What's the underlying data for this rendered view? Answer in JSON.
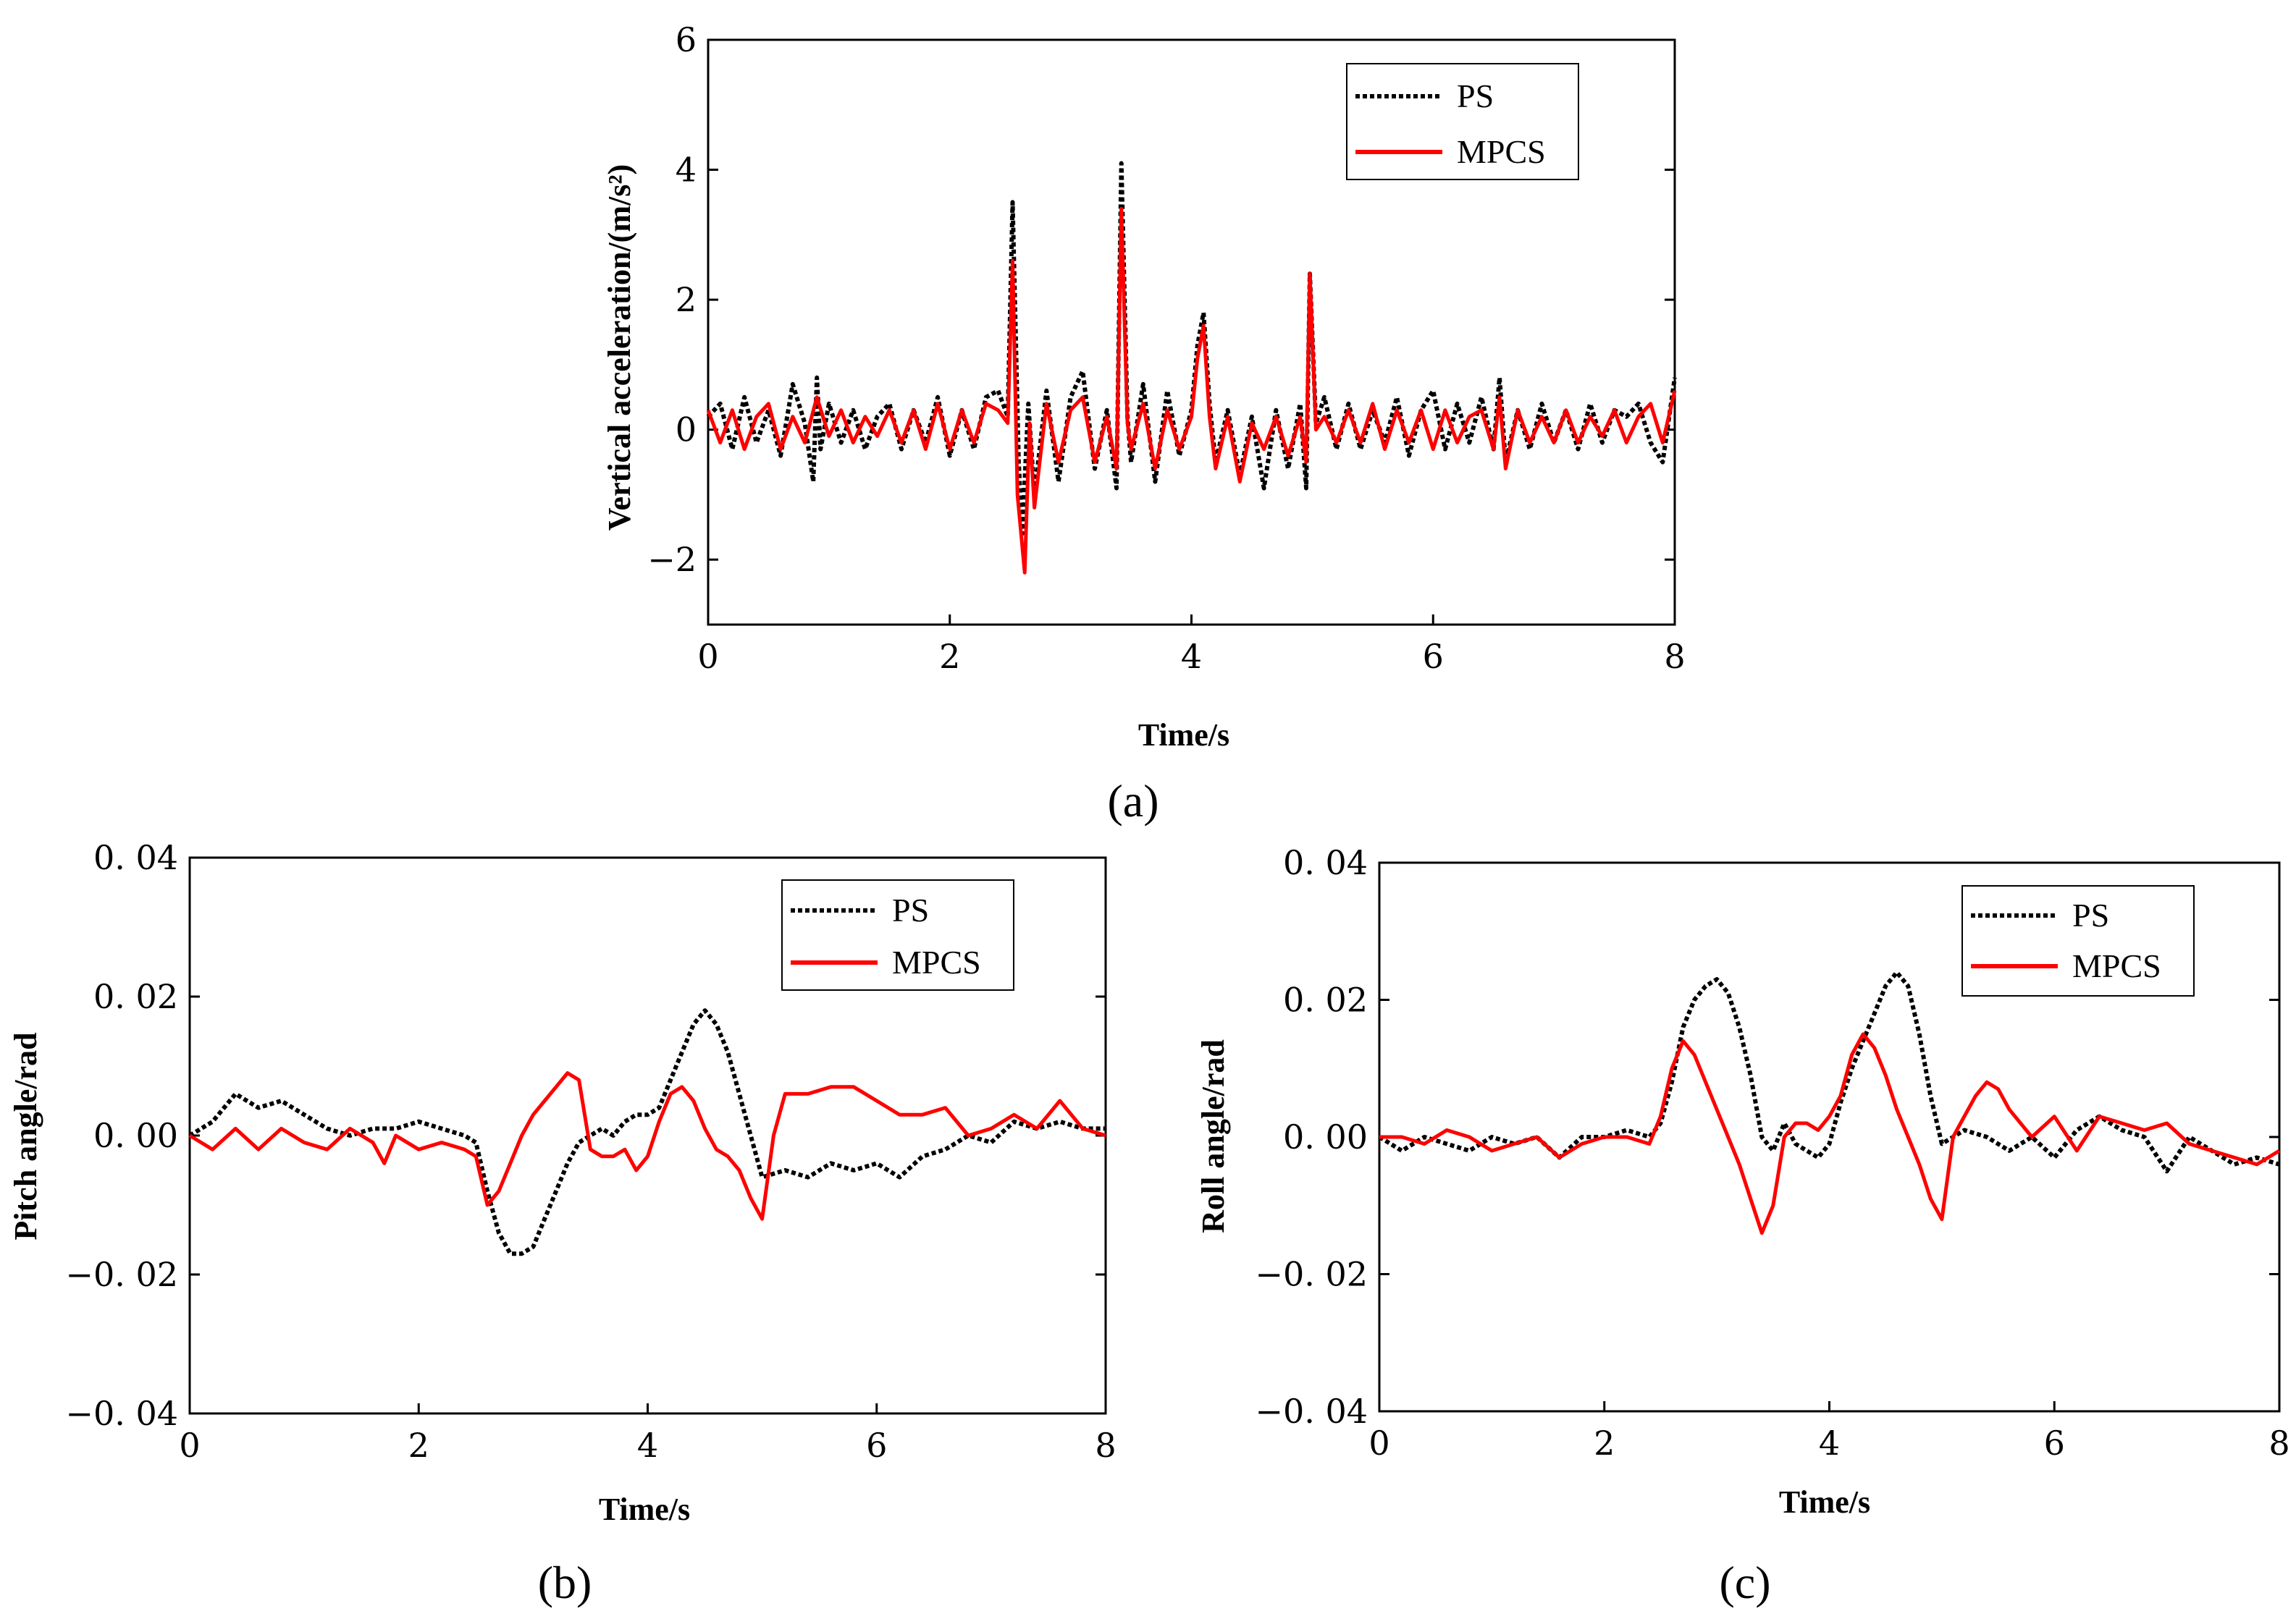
{
  "colors": {
    "ps": "#000000",
    "mpcs": "#ff0000",
    "axis": "#000000",
    "background": "#ffffff"
  },
  "chart_data": [
    {
      "id": "a",
      "type": "line",
      "panel_label": "(a)",
      "title": "",
      "xlabel": "Time/s",
      "ylabel": "Vertical acceleration/(m/s²)",
      "xlim": [
        0,
        8
      ],
      "ylim": [
        -3,
        6
      ],
      "xticks": [
        0,
        2,
        4,
        6,
        8
      ],
      "xtick_labels": [
        "0",
        "2",
        "4",
        "6",
        "8"
      ],
      "yticks": [
        -2,
        0,
        2,
        4,
        6
      ],
      "ytick_labels": [
        "−2",
        "0",
        "2",
        "4",
        "6"
      ],
      "legend_position": "top-right",
      "series": [
        {
          "name": "PS",
          "style": "dotted",
          "x": [
            0,
            0.1,
            0.2,
            0.3,
            0.4,
            0.5,
            0.6,
            0.7,
            0.8,
            0.87,
            0.9,
            0.93,
            1.0,
            1.1,
            1.2,
            1.3,
            1.4,
            1.5,
            1.6,
            1.7,
            1.8,
            1.9,
            2.0,
            2.1,
            2.2,
            2.3,
            2.4,
            2.48,
            2.52,
            2.57,
            2.6,
            2.65,
            2.7,
            2.8,
            2.9,
            3.0,
            3.1,
            3.2,
            3.3,
            3.38,
            3.42,
            3.47,
            3.5,
            3.6,
            3.7,
            3.8,
            3.9,
            4.0,
            4.05,
            4.1,
            4.15,
            4.2,
            4.3,
            4.4,
            4.5,
            4.6,
            4.7,
            4.8,
            4.9,
            4.95,
            4.98,
            5.03,
            5.1,
            5.2,
            5.3,
            5.4,
            5.5,
            5.6,
            5.7,
            5.8,
            5.9,
            6.0,
            6.1,
            6.2,
            6.3,
            6.4,
            6.5,
            6.55,
            6.6,
            6.7,
            6.8,
            6.9,
            7.0,
            7.1,
            7.2,
            7.3,
            7.4,
            7.5,
            7.6,
            7.7,
            7.8,
            7.9,
            8.0
          ],
          "y": [
            0.2,
            0.4,
            -0.3,
            0.5,
            -0.2,
            0.3,
            -0.4,
            0.7,
            0.1,
            -0.8,
            0.8,
            -0.3,
            0.4,
            -0.2,
            0.3,
            -0.3,
            0.2,
            0.4,
            -0.3,
            0.3,
            -0.2,
            0.5,
            -0.4,
            0.3,
            -0.3,
            0.5,
            0.6,
            0.2,
            3.5,
            -0.5,
            -1.6,
            0.4,
            -1.0,
            0.6,
            -0.8,
            0.5,
            0.9,
            -0.6,
            0.3,
            -0.9,
            4.1,
            0.2,
            -0.5,
            0.7,
            -0.8,
            0.6,
            -0.4,
            0.3,
            1.3,
            1.8,
            0.4,
            -0.5,
            0.3,
            -0.7,
            0.2,
            -0.9,
            0.3,
            -0.6,
            0.4,
            -0.9,
            2.4,
            0.1,
            0.5,
            -0.3,
            0.4,
            -0.3,
            0.3,
            -0.2,
            0.5,
            -0.4,
            0.3,
            0.6,
            -0.3,
            0.4,
            -0.2,
            0.5,
            -0.3,
            0.8,
            -0.5,
            0.3,
            -0.3,
            0.4,
            -0.2,
            0.3,
            -0.3,
            0.4,
            -0.2,
            0.3,
            0.2,
            0.4,
            -0.2,
            -0.5,
            0.8
          ]
        },
        {
          "name": "MPCS",
          "style": "solid",
          "x": [
            0,
            0.1,
            0.2,
            0.3,
            0.4,
            0.5,
            0.6,
            0.7,
            0.8,
            0.9,
            1.0,
            1.1,
            1.2,
            1.3,
            1.4,
            1.5,
            1.6,
            1.7,
            1.8,
            1.9,
            2.0,
            2.1,
            2.2,
            2.3,
            2.4,
            2.48,
            2.52,
            2.56,
            2.62,
            2.66,
            2.7,
            2.8,
            2.9,
            3.0,
            3.1,
            3.2,
            3.3,
            3.38,
            3.42,
            3.47,
            3.5,
            3.6,
            3.7,
            3.8,
            3.9,
            4.0,
            4.05,
            4.1,
            4.15,
            4.2,
            4.3,
            4.4,
            4.5,
            4.6,
            4.7,
            4.8,
            4.9,
            4.95,
            4.98,
            5.03,
            5.1,
            5.2,
            5.3,
            5.4,
            5.5,
            5.6,
            5.7,
            5.8,
            5.9,
            6.0,
            6.1,
            6.2,
            6.3,
            6.4,
            6.5,
            6.55,
            6.6,
            6.7,
            6.8,
            6.9,
            7.0,
            7.1,
            7.2,
            7.3,
            7.4,
            7.5,
            7.6,
            7.7,
            7.8,
            7.9,
            8.0
          ],
          "y": [
            0.3,
            -0.2,
            0.3,
            -0.3,
            0.2,
            0.4,
            -0.3,
            0.2,
            -0.2,
            0.5,
            -0.1,
            0.3,
            -0.2,
            0.2,
            -0.1,
            0.3,
            -0.2,
            0.3,
            -0.3,
            0.4,
            -0.3,
            0.3,
            -0.2,
            0.4,
            0.3,
            0.1,
            2.6,
            -1.0,
            -2.2,
            0.1,
            -1.2,
            0.4,
            -0.5,
            0.3,
            0.5,
            -0.5,
            0.2,
            -0.6,
            3.4,
            0.1,
            -0.3,
            0.4,
            -0.6,
            0.3,
            -0.3,
            0.2,
            1.1,
            1.6,
            0.2,
            -0.6,
            0.2,
            -0.8,
            0.1,
            -0.3,
            0.2,
            -0.4,
            0.2,
            -0.5,
            2.4,
            0.0,
            0.2,
            -0.2,
            0.3,
            -0.2,
            0.4,
            -0.3,
            0.3,
            -0.2,
            0.3,
            -0.3,
            0.3,
            -0.2,
            0.2,
            0.3,
            -0.3,
            0.5,
            -0.6,
            0.3,
            -0.2,
            0.2,
            -0.2,
            0.3,
            -0.2,
            0.2,
            -0.1,
            0.3,
            -0.2,
            0.2,
            0.4,
            -0.2,
            0.6
          ]
        }
      ]
    },
    {
      "id": "b",
      "type": "line",
      "panel_label": "(b)",
      "title": "",
      "xlabel": "Time/s",
      "ylabel": "Pitch angle/rad",
      "xlim": [
        0,
        8
      ],
      "ylim": [
        -0.04,
        0.04
      ],
      "xticks": [
        0,
        2,
        4,
        6,
        8
      ],
      "xtick_labels": [
        "0",
        "2",
        "4",
        "6",
        "8"
      ],
      "yticks": [
        -0.04,
        -0.02,
        0.0,
        0.02,
        0.04
      ],
      "ytick_labels": [
        "−0. 04",
        "−0. 02",
        "0. 00",
        "0. 02",
        "0. 04"
      ],
      "legend_position": "top-right",
      "series": [
        {
          "name": "PS",
          "style": "dotted",
          "x": [
            0,
            0.2,
            0.4,
            0.6,
            0.8,
            1.0,
            1.2,
            1.4,
            1.6,
            1.8,
            2.0,
            2.2,
            2.4,
            2.5,
            2.6,
            2.7,
            2.8,
            2.9,
            3.0,
            3.1,
            3.2,
            3.3,
            3.4,
            3.5,
            3.6,
            3.7,
            3.8,
            3.9,
            4.0,
            4.1,
            4.2,
            4.3,
            4.4,
            4.5,
            4.6,
            4.7,
            4.8,
            4.9,
            5.0,
            5.2,
            5.4,
            5.6,
            5.8,
            6.0,
            6.2,
            6.4,
            6.6,
            6.8,
            7.0,
            7.2,
            7.4,
            7.6,
            7.8,
            8.0
          ],
          "y": [
            0.0,
            0.002,
            0.006,
            0.004,
            0.005,
            0.003,
            0.001,
            0.0,
            0.001,
            0.001,
            0.002,
            0.001,
            0.0,
            -0.001,
            -0.008,
            -0.014,
            -0.017,
            -0.017,
            -0.016,
            -0.012,
            -0.008,
            -0.004,
            -0.001,
            0.0,
            0.001,
            0.0,
            0.002,
            0.003,
            0.003,
            0.004,
            0.008,
            0.012,
            0.016,
            0.018,
            0.016,
            0.012,
            0.006,
            0.0,
            -0.006,
            -0.005,
            -0.006,
            -0.004,
            -0.005,
            -0.004,
            -0.006,
            -0.003,
            -0.002,
            0.0,
            -0.001,
            0.002,
            0.001,
            0.002,
            0.001,
            0.001
          ]
        },
        {
          "name": "MPCS",
          "style": "solid",
          "x": [
            0,
            0.2,
            0.4,
            0.6,
            0.8,
            1.0,
            1.2,
            1.4,
            1.6,
            1.7,
            1.8,
            2.0,
            2.2,
            2.4,
            2.5,
            2.6,
            2.7,
            2.8,
            2.9,
            3.0,
            3.1,
            3.2,
            3.3,
            3.4,
            3.5,
            3.6,
            3.7,
            3.8,
            3.9,
            4.0,
            4.1,
            4.2,
            4.3,
            4.4,
            4.5,
            4.6,
            4.7,
            4.8,
            4.9,
            5.0,
            5.1,
            5.2,
            5.4,
            5.6,
            5.8,
            6.0,
            6.2,
            6.4,
            6.6,
            6.8,
            7.0,
            7.2,
            7.4,
            7.6,
            7.8,
            8.0
          ],
          "y": [
            0.0,
            -0.002,
            0.001,
            -0.002,
            0.001,
            -0.001,
            -0.002,
            0.001,
            -0.001,
            -0.004,
            0.0,
            -0.002,
            -0.001,
            -0.002,
            -0.003,
            -0.01,
            -0.008,
            -0.004,
            0.0,
            0.003,
            0.005,
            0.007,
            0.009,
            0.008,
            -0.002,
            -0.003,
            -0.003,
            -0.002,
            -0.005,
            -0.003,
            0.002,
            0.006,
            0.007,
            0.005,
            0.001,
            -0.002,
            -0.003,
            -0.005,
            -0.009,
            -0.012,
            0.0,
            0.006,
            0.006,
            0.007,
            0.007,
            0.005,
            0.003,
            0.003,
            0.004,
            0.0,
            0.001,
            0.003,
            0.001,
            0.005,
            0.001,
            0.0
          ]
        }
      ]
    },
    {
      "id": "c",
      "type": "line",
      "panel_label": "(c)",
      "title": "",
      "xlabel": "Time/s",
      "ylabel": "Roll angle/rad",
      "xlim": [
        0,
        8
      ],
      "ylim": [
        -0.04,
        0.04
      ],
      "xticks": [
        0,
        2,
        4,
        6,
        8
      ],
      "xtick_labels": [
        "0",
        "2",
        "4",
        "6",
        "8"
      ],
      "yticks": [
        -0.04,
        -0.02,
        0.0,
        0.02,
        0.04
      ],
      "ytick_labels": [
        "−0. 04",
        "−0. 02",
        "0. 00",
        "0. 02",
        "0. 04"
      ],
      "legend_position": "top-right",
      "series": [
        {
          "name": "PS",
          "style": "dotted",
          "x": [
            0,
            0.2,
            0.4,
            0.6,
            0.8,
            1.0,
            1.2,
            1.4,
            1.6,
            1.8,
            2.0,
            2.2,
            2.4,
            2.5,
            2.6,
            2.7,
            2.8,
            2.9,
            3.0,
            3.1,
            3.2,
            3.3,
            3.4,
            3.5,
            3.6,
            3.7,
            3.8,
            3.9,
            4.0,
            4.1,
            4.2,
            4.3,
            4.4,
            4.5,
            4.6,
            4.7,
            4.8,
            4.9,
            5.0,
            5.2,
            5.4,
            5.6,
            5.8,
            6.0,
            6.2,
            6.4,
            6.6,
            6.8,
            7.0,
            7.2,
            7.4,
            7.6,
            7.8,
            8.0
          ],
          "y": [
            0.0,
            -0.002,
            0.0,
            -0.001,
            -0.002,
            0.0,
            -0.001,
            0.0,
            -0.003,
            0.0,
            0.0,
            0.001,
            0.0,
            0.002,
            0.008,
            0.016,
            0.02,
            0.022,
            0.023,
            0.021,
            0.016,
            0.009,
            0.0,
            -0.002,
            0.002,
            -0.001,
            -0.002,
            -0.003,
            -0.001,
            0.005,
            0.01,
            0.014,
            0.018,
            0.022,
            0.024,
            0.022,
            0.015,
            0.006,
            -0.001,
            0.001,
            0.0,
            -0.002,
            0.0,
            -0.003,
            0.001,
            0.003,
            0.001,
            0.0,
            -0.005,
            0.0,
            -0.002,
            -0.004,
            -0.003,
            -0.004
          ]
        },
        {
          "name": "MPCS",
          "style": "solid",
          "x": [
            0,
            0.2,
            0.4,
            0.6,
            0.8,
            1.0,
            1.2,
            1.4,
            1.6,
            1.8,
            2.0,
            2.2,
            2.4,
            2.5,
            2.6,
            2.7,
            2.8,
            2.9,
            3.0,
            3.1,
            3.2,
            3.3,
            3.4,
            3.5,
            3.6,
            3.7,
            3.8,
            3.9,
            4.0,
            4.1,
            4.2,
            4.3,
            4.4,
            4.5,
            4.6,
            4.7,
            4.8,
            4.9,
            5.0,
            5.1,
            5.2,
            5.3,
            5.4,
            5.5,
            5.6,
            5.8,
            6.0,
            6.2,
            6.4,
            6.6,
            6.8,
            7.0,
            7.2,
            7.4,
            7.6,
            7.8,
            8.0
          ],
          "y": [
            0.0,
            0.0,
            -0.001,
            0.001,
            0.0,
            -0.002,
            -0.001,
            0.0,
            -0.003,
            -0.001,
            0.0,
            0.0,
            -0.001,
            0.003,
            0.01,
            0.014,
            0.012,
            0.008,
            0.004,
            0.0,
            -0.004,
            -0.009,
            -0.014,
            -0.01,
            0.0,
            0.002,
            0.002,
            0.001,
            0.003,
            0.006,
            0.012,
            0.015,
            0.013,
            0.009,
            0.004,
            0.0,
            -0.004,
            -0.009,
            -0.012,
            0.0,
            0.003,
            0.006,
            0.008,
            0.007,
            0.004,
            0.0,
            0.003,
            -0.002,
            0.003,
            0.002,
            0.001,
            0.002,
            -0.001,
            -0.002,
            -0.003,
            -0.004,
            -0.002
          ]
        }
      ]
    }
  ]
}
